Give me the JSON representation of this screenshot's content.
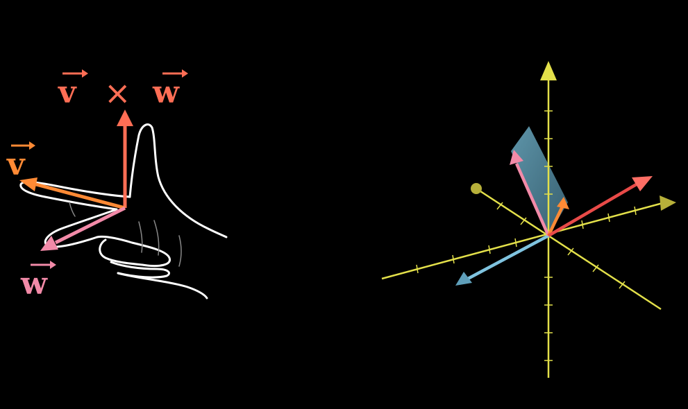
{
  "labels": {
    "formula_v": "v",
    "formula_op": "×",
    "formula_w": "w",
    "hand_v": "v",
    "hand_w": "w"
  },
  "colors": {
    "background": "#000000",
    "cross_product": "#ff6e55",
    "v_vector": "#ff8a35",
    "w_vector": "#f28aa8",
    "axis": "#e3e04a",
    "hand_outline": "#ffffff",
    "v_3d": "#ff8a35",
    "w_3d": "#f28aa8",
    "cross_3d": "#e84a48",
    "third_vector": "#7fc3df",
    "parallelogram": "#5f9fba"
  },
  "icons": {
    "arrow_head": "triangle-arrowhead",
    "vector_accent": "right-arrow-accent"
  }
}
